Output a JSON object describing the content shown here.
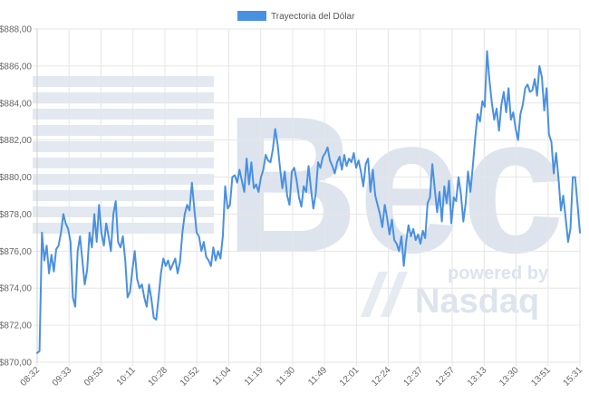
{
  "chart_data": {
    "type": "line",
    "title": "",
    "xlabel": "",
    "ylabel": "",
    "legend": {
      "position": "top-center",
      "entries": [
        "Trayectoria del Dólar"
      ]
    },
    "grid": true,
    "ylim": [
      870,
      888
    ],
    "y_ticks": [
      "$888,00",
      "$886,00",
      "$884,00",
      "$882,00",
      "$880,00",
      "$878,00",
      "$876,00",
      "$874,00",
      "$872,00",
      "$870,00"
    ],
    "y_tick_values": [
      888,
      886,
      884,
      882,
      880,
      878,
      876,
      874,
      872,
      870
    ],
    "x_ticks": [
      "08:32",
      "09:33",
      "09:53",
      "10:11",
      "10:28",
      "10:52",
      "11:04",
      "11:19",
      "11:30",
      "11:49",
      "12:01",
      "12:24",
      "12:37",
      "12:57",
      "13:13",
      "13:30",
      "13:51",
      "15:31"
    ],
    "series": [
      {
        "name": "Trayectoria del Dólar",
        "color": "#4a90e2",
        "values": [
          870.5,
          870.6,
          877.0,
          875.5,
          876.3,
          874.8,
          875.8,
          874.9,
          876.1,
          876.3,
          877.0,
          878.0,
          877.5,
          877.2,
          876.5,
          873.5,
          873.0,
          876.0,
          876.8,
          875.5,
          874.2,
          875.0,
          877.0,
          876.2,
          878.0,
          876.5,
          878.5,
          877.0,
          876.3,
          877.5,
          876.8,
          876.0,
          878.0,
          878.7,
          876.5,
          876.2,
          876.8,
          875.5,
          873.5,
          873.8,
          875.0,
          876.0,
          874.5,
          874.0,
          874.2,
          873.5,
          873.0,
          874.2,
          873.4,
          872.4,
          872.3,
          873.5,
          874.8,
          875.6,
          875.2,
          875.5,
          875.0,
          875.3,
          875.6,
          874.8,
          875.4,
          877.0,
          878.0,
          878.5,
          878.2,
          879.7,
          878.3,
          877.0,
          876.8,
          876.0,
          876.5,
          875.7,
          875.5,
          875.2,
          876.2,
          875.5,
          876.0,
          875.6,
          876.8,
          879.5,
          878.3,
          878.5,
          880.0,
          880.1,
          879.7,
          880.4,
          879.8,
          879.2,
          881.0,
          879.6,
          880.8,
          879.4,
          879.6,
          879.2,
          880.0,
          880.4,
          881.2,
          880.9,
          880.8,
          881.5,
          882.6,
          881.8,
          880.5,
          879.4,
          880.3,
          879.0,
          878.5,
          880.3,
          880.5,
          879.8,
          878.9,
          878.4,
          879.5,
          879.2,
          880.6,
          879.4,
          878.3,
          879.1,
          880.8,
          880.5,
          881.1,
          881.3,
          881.6,
          880.9,
          880.6,
          880.2,
          880.8,
          881.1,
          880.4,
          881.2,
          880.6,
          881.0,
          880.8,
          881.3,
          880.5,
          880.9,
          880.3,
          879.5,
          880.7,
          881.0,
          879.2,
          880.4,
          879.0,
          878.5,
          878.0,
          877.3,
          878.5,
          877.8,
          876.9,
          877.7,
          876.6,
          876.4,
          876.0,
          876.8,
          875.2,
          876.5,
          877.4,
          876.8,
          877.2,
          876.6,
          876.9,
          876.4,
          877.1,
          876.7,
          878.6,
          878.9,
          880.7,
          879.4,
          878.1,
          879.2,
          877.6,
          879.5,
          878.6,
          879.8,
          877.5,
          878.9,
          878.7,
          880.0,
          879.1,
          877.6,
          878.6,
          880.3,
          879.2,
          880.6,
          882.1,
          883.4,
          883.0,
          884.1,
          883.8,
          886.8,
          885.2,
          884.0,
          883.1,
          883.7,
          882.5,
          883.9,
          884.6,
          883.5,
          884.8,
          883.1,
          883.5,
          882.6,
          882.0,
          883.4,
          883.9,
          884.8,
          885.0,
          884.6,
          884.7,
          885.3,
          884.4,
          886.0,
          885.4,
          883.6,
          884.8,
          882.3,
          881.9,
          880.2,
          881.3,
          879.9,
          878.2,
          879.0,
          877.8,
          876.5,
          877.2,
          880.0,
          880.0,
          878.5,
          877.0
        ]
      }
    ]
  },
  "watermark": {
    "brand": "Bec",
    "powered_by": "powered by",
    "partner": "Nasdaq"
  }
}
